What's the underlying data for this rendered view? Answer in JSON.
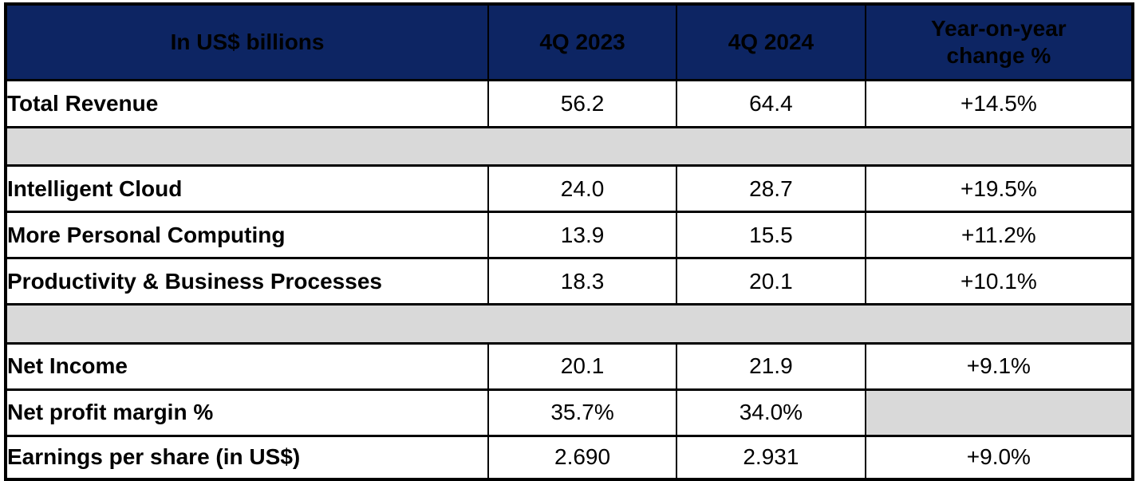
{
  "colors": {
    "header_bg": "#0D2563",
    "header_text": "#FFFFFF",
    "spacer_bg": "#D9D9D9",
    "border": "#000000",
    "body_text": "#000000"
  },
  "table": {
    "header": {
      "metric": "In US$ billions",
      "q4_2023": "4Q 2023",
      "q4_2024": "4Q 2024",
      "yoy": "Year-on-year\nchange %"
    },
    "rows": [
      {
        "label": "Total Revenue",
        "q4_2023": "56.2",
        "q4_2024": "64.4",
        "yoy": "+14.5%"
      },
      {
        "label": "Intelligent Cloud",
        "q4_2023": "24.0",
        "q4_2024": "28.7",
        "yoy": "+19.5%"
      },
      {
        "label": "More Personal Computing",
        "q4_2023": "13.9",
        "q4_2024": "15.5",
        "yoy": "+11.2%"
      },
      {
        "label": "Productivity & Business Processes",
        "q4_2023": "18.3",
        "q4_2024": "20.1",
        "yoy": "+10.1%"
      },
      {
        "label": "Net Income",
        "q4_2023": "20.1",
        "q4_2024": "21.9",
        "yoy": "+9.1%"
      },
      {
        "label": "Net profit margin %",
        "q4_2023": "35.7%",
        "q4_2024": "34.0%",
        "yoy": ""
      },
      {
        "label": "Earnings per share (in US$)",
        "q4_2023": "2.690",
        "q4_2024": "2.931",
        "yoy": "+9.0%"
      }
    ]
  },
  "chart_data": {
    "type": "table",
    "title": "Quarterly results, in US$ billions",
    "columns": [
      "In US$ billions",
      "4Q 2023",
      "4Q 2024",
      "Year-on-year change %"
    ],
    "rows": [
      [
        "Total Revenue",
        "56.2",
        "64.4",
        "+14.5%"
      ],
      [
        "Intelligent Cloud",
        "24.0",
        "28.7",
        "+19.5%"
      ],
      [
        "More Personal Computing",
        "13.9",
        "15.5",
        "+11.2%"
      ],
      [
        "Productivity & Business Processes",
        "18.3",
        "20.1",
        "+10.1%"
      ],
      [
        "Net Income",
        "20.1",
        "21.9",
        "+9.1%"
      ],
      [
        "Net profit margin %",
        "35.7%",
        "34.0%",
        ""
      ],
      [
        "Earnings per share (in US$)",
        "2.690",
        "2.931",
        "+9.0%"
      ]
    ]
  }
}
